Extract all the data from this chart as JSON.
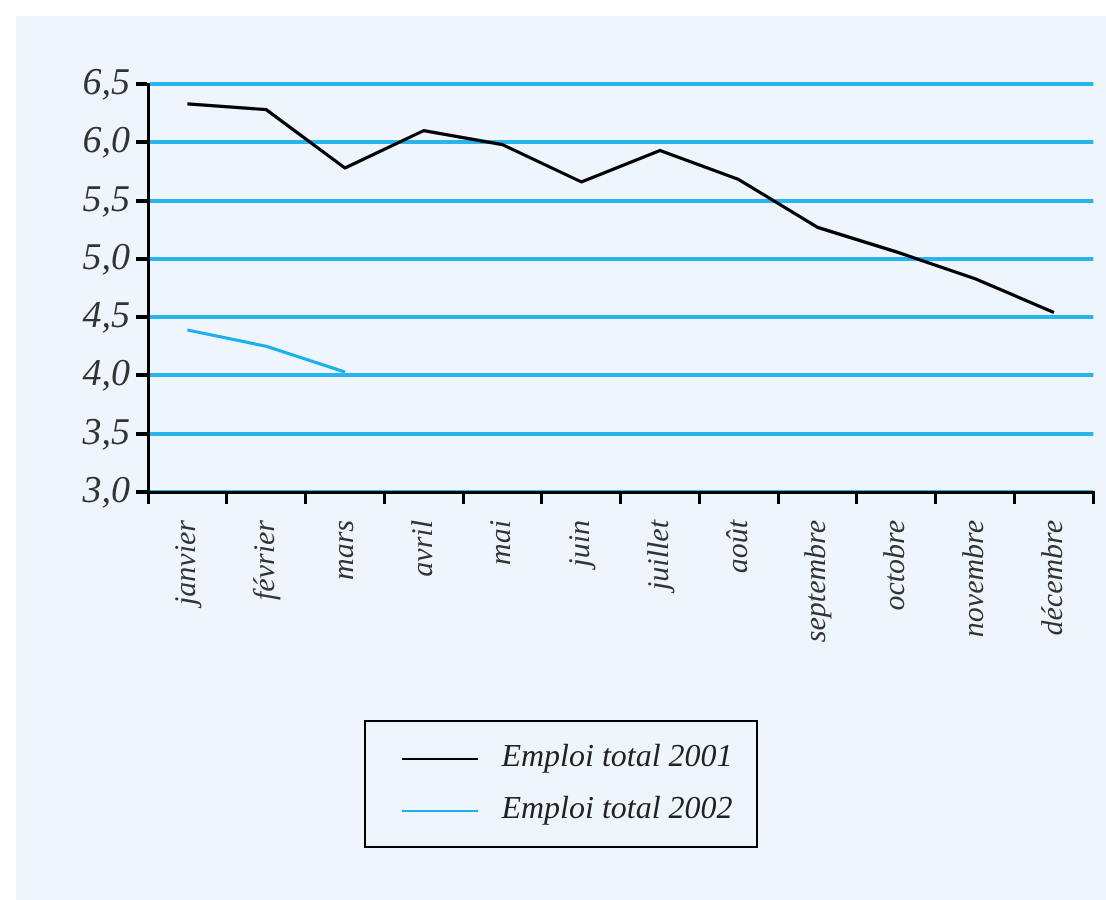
{
  "chart_data": {
    "type": "line",
    "categories": [
      "janvier",
      "février",
      "mars",
      "avril",
      "mai",
      "juin",
      "juillet",
      "août",
      "septembre",
      "octobre",
      "novembre",
      "décembre"
    ],
    "series": [
      {
        "name": "Emploi total 2001",
        "color": "#000000",
        "values": [
          6.33,
          6.28,
          5.78,
          6.1,
          5.98,
          5.66,
          5.93,
          5.68,
          5.27,
          5.06,
          4.83,
          4.54
        ]
      },
      {
        "name": "Emploi total 2002",
        "color": "#1ab0ec",
        "values": [
          4.39,
          4.25,
          4.03,
          null,
          null,
          null,
          null,
          null,
          null,
          null,
          null,
          null
        ]
      }
    ],
    "ylim": [
      3,
      6.5
    ],
    "yticks": [
      {
        "value": 3,
        "label": "3,0"
      },
      {
        "value": 3.5,
        "label": "3,5"
      },
      {
        "value": 4,
        "label": "4,0"
      },
      {
        "value": 4.5,
        "label": "4,5"
      },
      {
        "value": 5,
        "label": "5,0"
      },
      {
        "value": 5.5,
        "label": "5,5"
      },
      {
        "value": 6,
        "label": "6,0"
      },
      {
        "value": 6.5,
        "label": "6,5"
      }
    ],
    "grid": "y",
    "legend": "bottom",
    "marker": "none",
    "line_style": "solid"
  }
}
